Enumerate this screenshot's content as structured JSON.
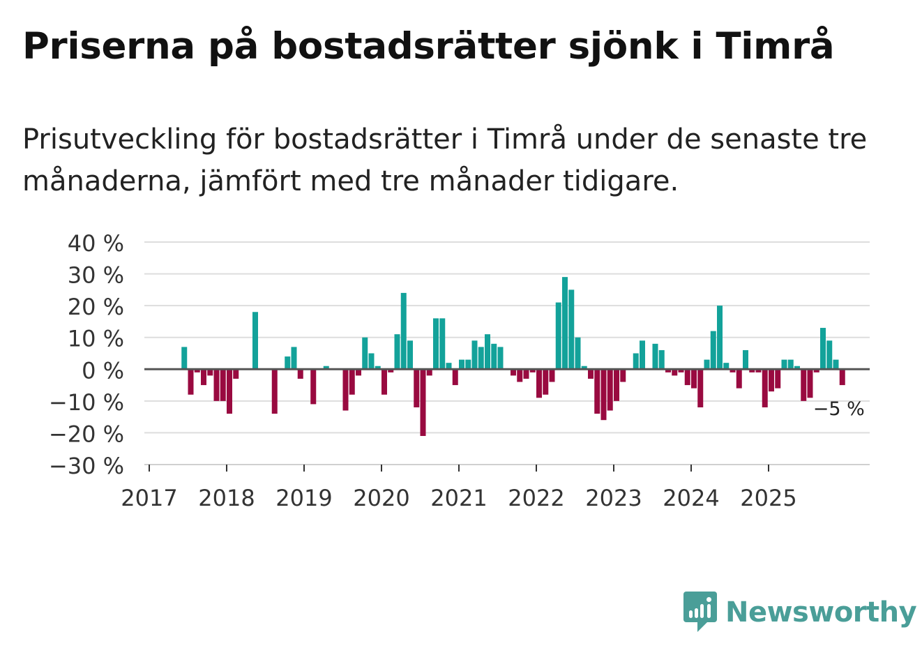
{
  "title": "Priserna på bostadsrätter sjönk i Timrå",
  "subtitle": "Prisutveckling för bostadsrätter i Timrå under de senaste tre månaderna, jämfört med tre månader tidigare.",
  "brand": {
    "name": "Newsworthy",
    "icon": "newsworthy-chart-icon",
    "color": "#4a9e98"
  },
  "colors": {
    "positive": "#13a29a",
    "negative": "#990a40",
    "grid": "#dddddd",
    "zero_line": "#555555"
  },
  "chart_data": {
    "type": "bar",
    "title": "Priserna på bostadsrätter sjönk i Timrå",
    "xlabel": "",
    "ylabel": "",
    "ylim": [
      -30,
      40
    ],
    "yticks": [
      40,
      30,
      20,
      10,
      0,
      -10,
      -20,
      -30
    ],
    "ytick_labels": [
      "40 %",
      "30 %",
      "20 %",
      "10 %",
      "0 %",
      "−10 %",
      "−20 %",
      "−30 %"
    ],
    "xtick_labels": [
      "2017",
      "2018",
      "2019",
      "2020",
      "2021",
      "2022",
      "2023",
      "2024",
      "2025"
    ],
    "start_year": 2017,
    "values": [
      null,
      null,
      null,
      null,
      null,
      7,
      -8,
      -1,
      -5,
      -2,
      -10,
      -10,
      -14,
      -3,
      null,
      null,
      18,
      null,
      null,
      -14,
      null,
      4,
      7,
      -3,
      null,
      -11,
      null,
      1,
      null,
      null,
      -13,
      -8,
      -2,
      10,
      5,
      1,
      -8,
      -1,
      11,
      24,
      9,
      -12,
      -21,
      -2,
      16,
      16,
      2,
      -5,
      3,
      3,
      9,
      7,
      11,
      8,
      7,
      null,
      -2,
      -4,
      -3,
      -1,
      -9,
      -8,
      -4,
      21,
      29,
      25,
      10,
      1,
      -3,
      -14,
      -16,
      -13,
      -10,
      -4,
      null,
      5,
      9,
      null,
      8,
      6,
      -1,
      -2,
      -1,
      -5,
      -6,
      -12,
      3,
      12,
      20,
      2,
      -1,
      -6,
      6,
      -1,
      -1,
      -12,
      -7,
      -6,
      3,
      3,
      1,
      -10,
      -9,
      -1,
      13,
      9,
      3,
      -5
    ],
    "last_value_label": "−5 %"
  }
}
